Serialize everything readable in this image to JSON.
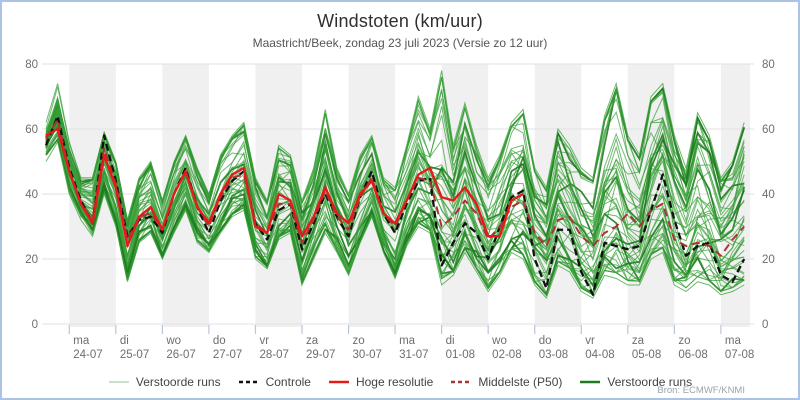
{
  "header": {
    "title": "Windstoten (km/uur)",
    "subtitle": "Maastricht/Beek, zondag 23 juli 2023 (Versie zo 12 uur)"
  },
  "attribution": "Bron: ECMWF/KNMI",
  "colors": {
    "frame_border": "#abc3e6",
    "band": "#f0f0f0",
    "grid": "#e2e2e2",
    "tick": "#b9c6da",
    "axis_text": "#6e6e6e",
    "title_text": "#2f2f2f",
    "subtitle_text": "#555555",
    "legend_text": "#444444",
    "attribution_text": "#9aa3ad",
    "ensemble": "#38a038",
    "ensemble_dark": "#1e7a1e",
    "ensemble_legend_light": "#b5d6b5",
    "control": "#111111",
    "hres": "#e31b1b",
    "p50": "#a83434"
  },
  "chart_data": {
    "type": "line",
    "title": "Windstoten (km/uur)",
    "subtitle": "Maastricht/Beek, zondag 23 juli 2023 (Versie zo 12 uur)",
    "ylabel": "km/uur",
    "ylim": [
      0,
      80
    ],
    "y_ticks": [
      0,
      20,
      40,
      60,
      80
    ],
    "grid": "horizontal",
    "legend_position": "bottom",
    "x_axis": {
      "start_hour": 0,
      "step_hours": 6,
      "points": 61,
      "extended_end_hour": 363,
      "day_tick_start_hour": 12,
      "day_tick_interval_hours": 24,
      "day_labels": [
        {
          "day": "ma",
          "date": "24-07"
        },
        {
          "day": "di",
          "date": "25-07"
        },
        {
          "day": "wo",
          "date": "26-07"
        },
        {
          "day": "do",
          "date": "27-07"
        },
        {
          "day": "vr",
          "date": "28-07"
        },
        {
          "day": "za",
          "date": "29-07"
        },
        {
          "day": "zo",
          "date": "30-07"
        },
        {
          "day": "ma",
          "date": "31-07"
        },
        {
          "day": "di",
          "date": "01-08"
        },
        {
          "day": "wo",
          "date": "02-08"
        },
        {
          "day": "do",
          "date": "03-08"
        },
        {
          "day": "vr",
          "date": "04-08"
        },
        {
          "day": "za",
          "date": "05-08"
        },
        {
          "day": "zo",
          "date": "06-08"
        },
        {
          "day": "ma",
          "date": "07-08"
        }
      ]
    },
    "series": [
      {
        "name": "Controle",
        "style": "control",
        "values": [
          55,
          64,
          48,
          38,
          31,
          58,
          44,
          27,
          32,
          33,
          28,
          40,
          48,
          36,
          28,
          38,
          44,
          47,
          31,
          26,
          35,
          37,
          23,
          31,
          40,
          33,
          27,
          39,
          47,
          34,
          28,
          37,
          44,
          45,
          18,
          25,
          31,
          28,
          20,
          30,
          39,
          41,
          20,
          11,
          29,
          29,
          16,
          9,
          25,
          24,
          23,
          24,
          35,
          46,
          32,
          21,
          24,
          25,
          15,
          13,
          20
        ]
      },
      {
        "name": "Hoge resolutie",
        "style": "hres",
        "values": [
          58,
          60,
          47,
          37,
          31,
          52,
          42,
          24,
          33,
          36,
          29,
          40,
          47,
          36,
          31,
          40,
          46,
          48,
          30,
          28,
          40,
          38,
          27,
          33,
          42,
          34,
          31,
          40,
          44,
          34,
          31,
          38,
          46,
          48,
          39,
          38,
          42,
          37,
          27,
          27,
          38,
          40
        ]
      },
      {
        "name": "Middelste (P50)",
        "style": "p50",
        "values": [
          57,
          63,
          47,
          37,
          32,
          54,
          43,
          26,
          33,
          34,
          29,
          40,
          47,
          36,
          30,
          39,
          45,
          46,
          31,
          28,
          37,
          37,
          25,
          32,
          41,
          33,
          29,
          39,
          45,
          34,
          30,
          38,
          45,
          44,
          30,
          33,
          38,
          34,
          26,
          30,
          36,
          38,
          28,
          24,
          32,
          33,
          27,
          24,
          28,
          30,
          34,
          30,
          35,
          37,
          26,
          24,
          25,
          24,
          21,
          26,
          30
        ]
      }
    ],
    "ensemble": {
      "name": "Verstoorde runs",
      "count": 50,
      "seed": 7,
      "max": [
        62,
        74,
        56,
        45,
        45,
        59,
        50,
        32,
        45,
        50,
        38,
        50,
        58,
        48,
        40,
        52,
        58,
        62,
        45,
        38,
        55,
        52,
        38,
        48,
        66,
        48,
        40,
        52,
        58,
        45,
        42,
        55,
        70,
        60,
        78,
        55,
        68,
        55,
        45,
        52,
        62,
        66,
        48,
        42,
        60,
        55,
        48,
        45,
        64,
        74,
        58,
        52,
        70,
        74,
        58,
        48,
        65,
        58,
        45,
        50,
        62
      ],
      "min": [
        50,
        56,
        40,
        32,
        27,
        40,
        30,
        13,
        25,
        28,
        20,
        28,
        35,
        25,
        22,
        28,
        33,
        35,
        20,
        17,
        26,
        28,
        12,
        20,
        28,
        22,
        15,
        25,
        33,
        22,
        14,
        24,
        30,
        28,
        12,
        15,
        22,
        16,
        10,
        15,
        22,
        20,
        12,
        8,
        18,
        16,
        10,
        8,
        15,
        14,
        12,
        12,
        20,
        22,
        12,
        10,
        13,
        12,
        9,
        10,
        12
      ]
    },
    "legend": [
      {
        "label": "Verstoorde runs",
        "color_key": "ensemble_legend_light",
        "dash": null,
        "width": 1.5
      },
      {
        "label": "Controle",
        "color_key": "control",
        "dash": "4 3",
        "width": 2.4
      },
      {
        "label": "Hoge resolutie",
        "color_key": "hres",
        "dash": null,
        "width": 2.6
      },
      {
        "label": "Middelste (P50)",
        "color_key": "p50",
        "dash": "4 3",
        "width": 2.4
      },
      {
        "label": "Verstoorde runs",
        "color_key": "ensemble_dark",
        "dash": null,
        "width": 2.4
      }
    ]
  }
}
